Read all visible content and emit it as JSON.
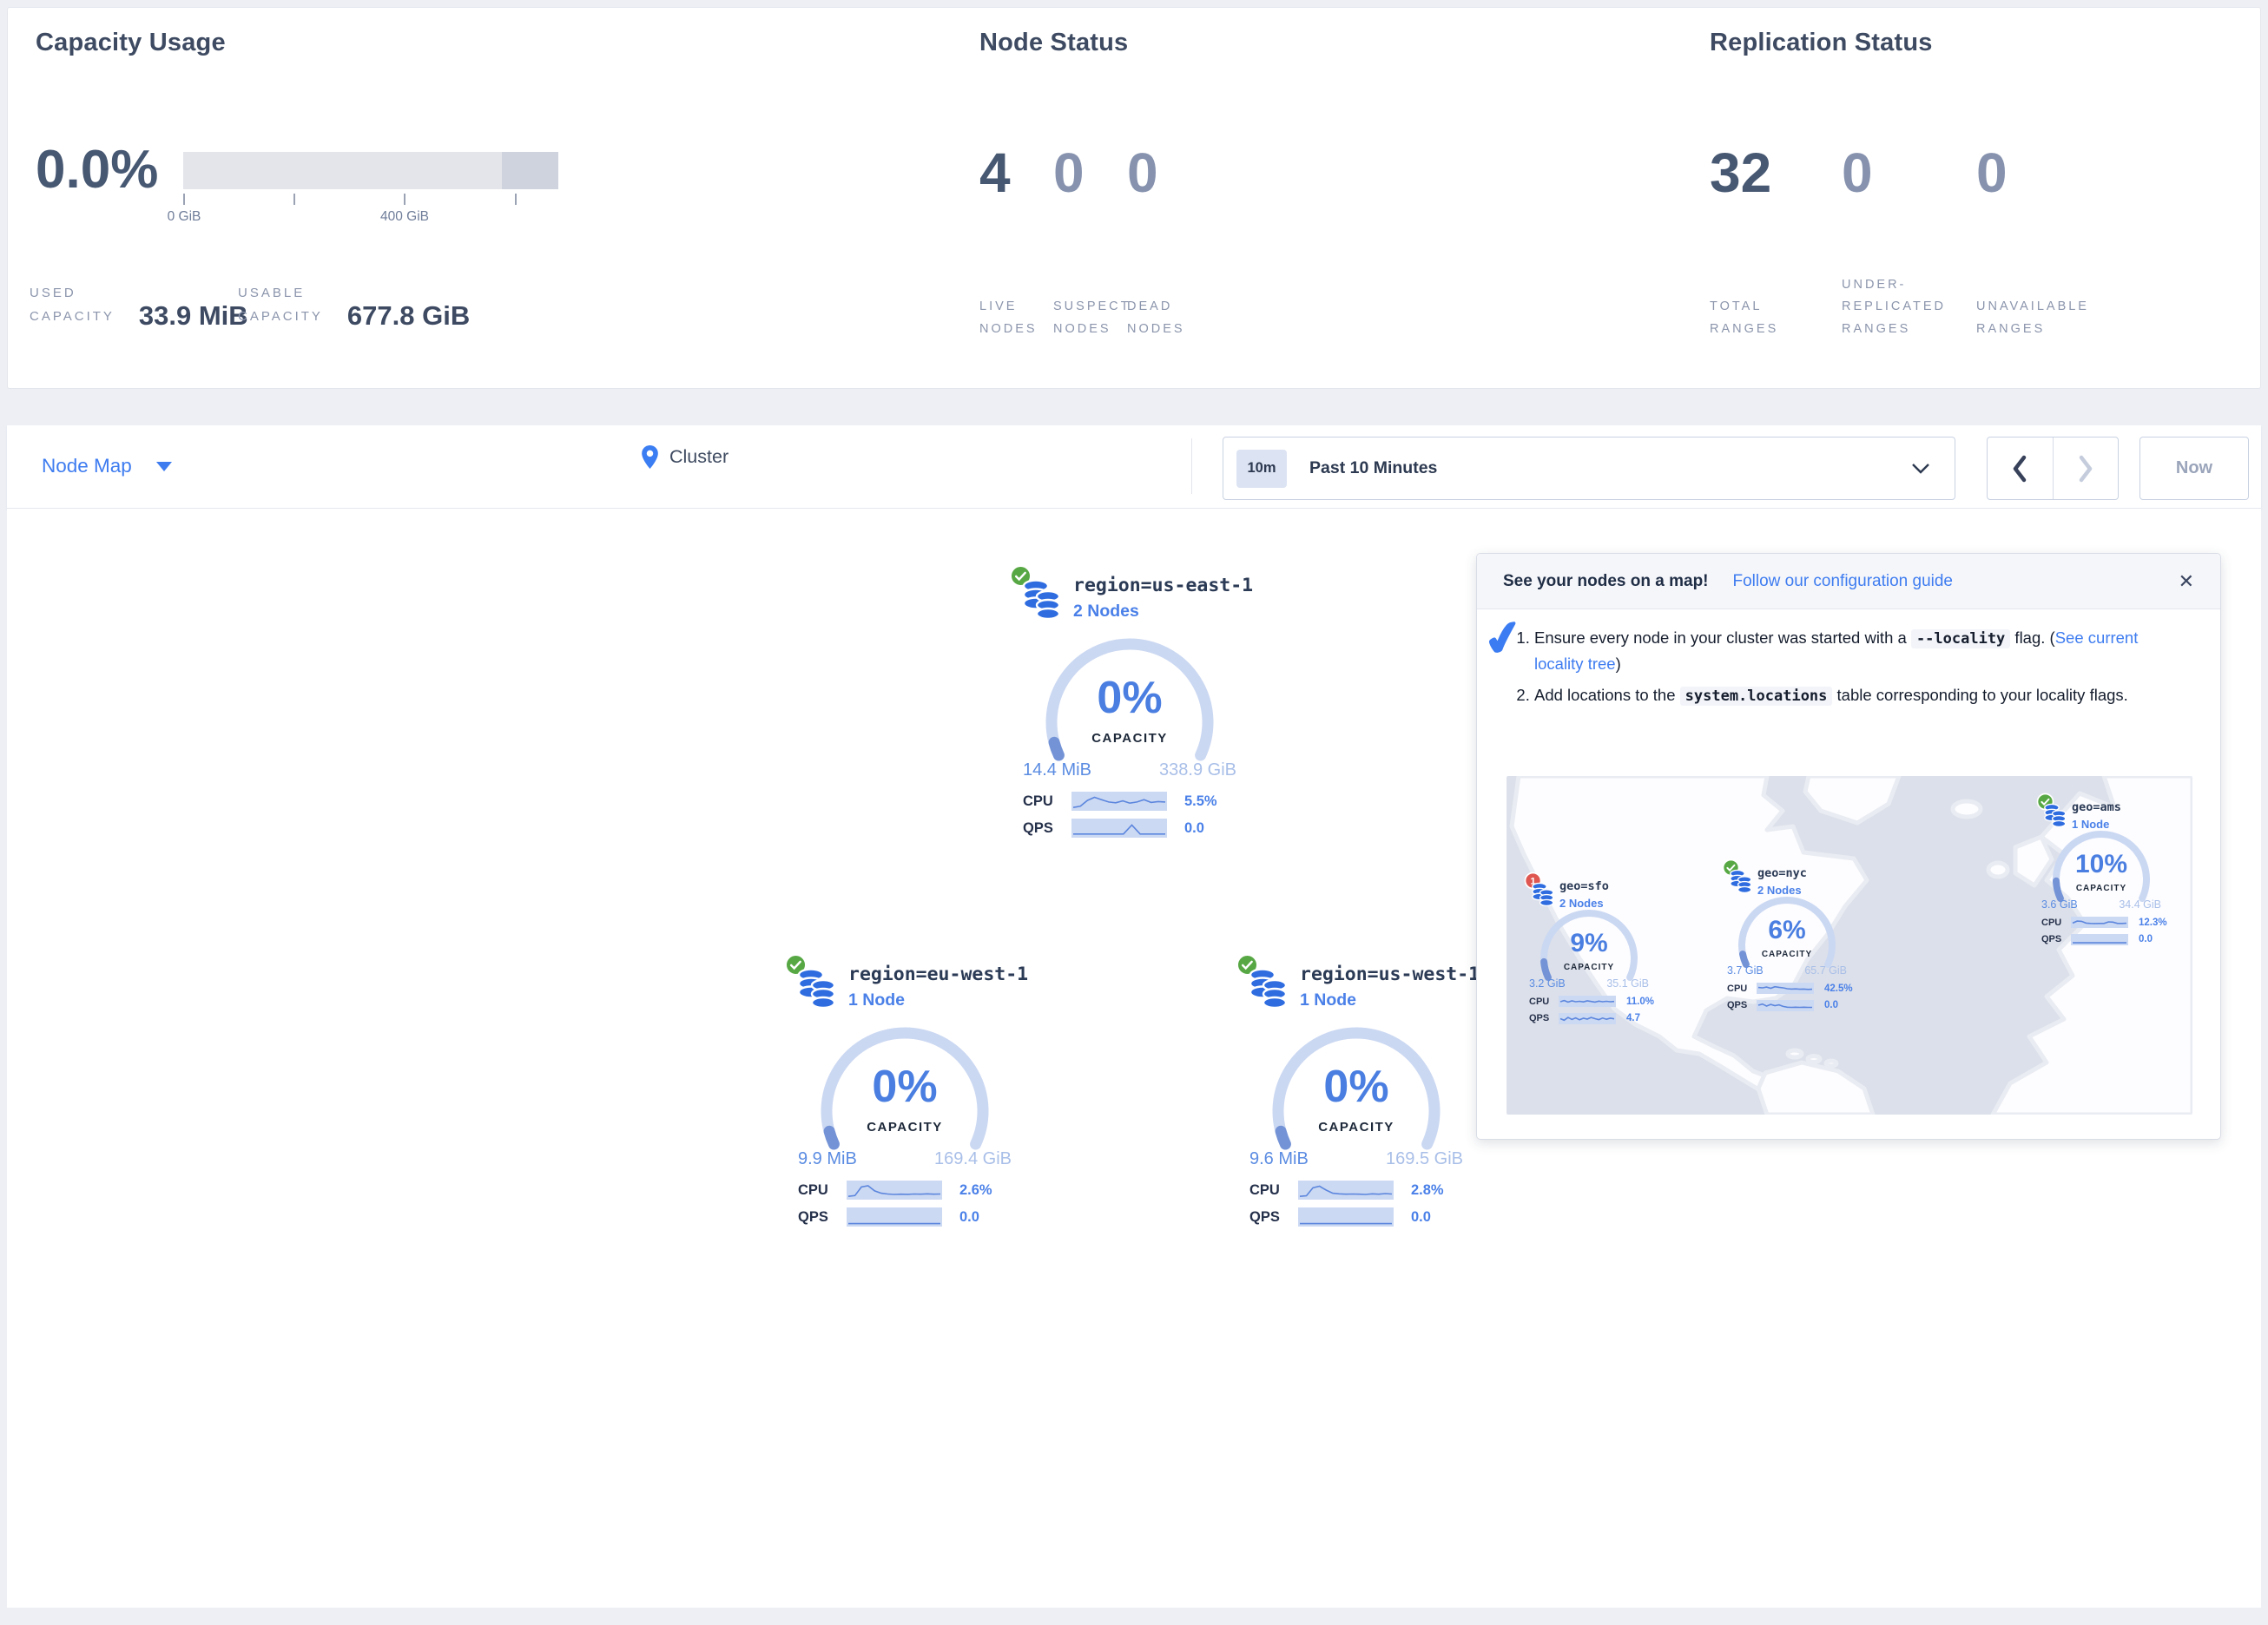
{
  "summary": {
    "capacity": {
      "title": "Capacity Usage",
      "percent": "0.0%",
      "tick_label_start": "0 GiB",
      "tick_label_mid": "400 GiB",
      "used": {
        "label_lines": [
          "USED",
          "CAPACITY"
        ],
        "value": "33.9 MiB"
      },
      "usable": {
        "label_lines": [
          "USABLE",
          "CAPACITY"
        ],
        "value": "677.8 GiB"
      }
    },
    "node_status": {
      "title": "Node Status",
      "stats": [
        {
          "value": "4",
          "muted": false,
          "label_lines": [
            "LIVE",
            "NODES"
          ]
        },
        {
          "value": "0",
          "muted": true,
          "label_lines": [
            "SUSPECT",
            "NODES"
          ]
        },
        {
          "value": "0",
          "muted": true,
          "label_lines": [
            "DEAD",
            "NODES"
          ]
        }
      ]
    },
    "replication_status": {
      "title": "Replication Status",
      "stats": [
        {
          "value": "32",
          "muted": false,
          "label_lines": [
            "TOTAL",
            "RANGES"
          ]
        },
        {
          "value": "0",
          "muted": true,
          "label_lines": [
            "UNDER-",
            "REPLICATED",
            "RANGES"
          ]
        },
        {
          "value": "0",
          "muted": true,
          "label_lines": [
            "UNAVAILABLE",
            "RANGES"
          ]
        }
      ]
    }
  },
  "toolbar": {
    "view_selector_label": "Node Map",
    "breadcrumb": "Cluster",
    "time_window_badge": "10m",
    "time_window_label": "Past 10 Minutes",
    "now_button_label": "Now"
  },
  "regions": [
    {
      "id": "us-east-1",
      "title": "region=us-east-1",
      "nodes_label": "2 Nodes",
      "status": "healthy",
      "pct": 0,
      "pct_label": "0%",
      "capacity_word": "CAPACITY",
      "used": "14.4 MiB",
      "total": "338.9 GiB",
      "metrics": [
        {
          "label": "CPU",
          "value": "5.5%",
          "spark": [
            10,
            18,
            55,
            75,
            60,
            45,
            40,
            52,
            38,
            45,
            60,
            42,
            48,
            45
          ]
        },
        {
          "label": "QPS",
          "value": "0.0",
          "spark": [
            12,
            12,
            12,
            12,
            12,
            12,
            12,
            70,
            12,
            12,
            12,
            12
          ]
        }
      ]
    },
    {
      "id": "eu-west-1",
      "title": "region=eu-west-1",
      "nodes_label": "1 Node",
      "status": "healthy",
      "pct": 0,
      "pct_label": "0%",
      "capacity_word": "CAPACITY",
      "used": "9.9 MiB",
      "total": "169.4 GiB",
      "metrics": [
        {
          "label": "CPU",
          "value": "2.6%",
          "spark": [
            10,
            15,
            70,
            78,
            45,
            30,
            25,
            22,
            24,
            23,
            25,
            24,
            26,
            24,
            25
          ]
        },
        {
          "label": "QPS",
          "value": "0.0",
          "spark": [
            8,
            8,
            8,
            8,
            8,
            8,
            8,
            8,
            8,
            8
          ]
        }
      ]
    },
    {
      "id": "us-west-1",
      "title": "region=us-west-1",
      "nodes_label": "1 Node",
      "status": "healthy",
      "pct": 0,
      "pct_label": "0%",
      "capacity_word": "CAPACITY",
      "used": "9.6 MiB",
      "total": "169.5 GiB",
      "metrics": [
        {
          "label": "CPU",
          "value": "2.8%",
          "spark": [
            10,
            14,
            65,
            75,
            50,
            30,
            26,
            24,
            25,
            24,
            22,
            26,
            24,
            28,
            25
          ]
        },
        {
          "label": "QPS",
          "value": "0.0",
          "spark": [
            8,
            8,
            8,
            8,
            8,
            8,
            8,
            8,
            8,
            8
          ]
        }
      ]
    }
  ],
  "popup": {
    "title": "See your nodes on a map!",
    "link_label": "Follow our configuration guide",
    "close_icon": "✕",
    "check_icon": "✔",
    "steps": [
      {
        "parts": [
          {
            "type": "text",
            "value": "Ensure every node in your cluster was started with a "
          },
          {
            "type": "code",
            "value": "--locality"
          },
          {
            "type": "text",
            "value": " flag. ("
          },
          {
            "type": "link",
            "value": "See current locality tree"
          },
          {
            "type": "text",
            "value": ")"
          }
        ]
      },
      {
        "parts": [
          {
            "type": "text",
            "value": "Add locations to the "
          },
          {
            "type": "code",
            "value": "system.locations"
          },
          {
            "type": "text",
            "value": " table corresponding to your locality flags."
          }
        ]
      }
    ],
    "mini_regions": [
      {
        "id": "geo-sfo",
        "title": "geo=sfo",
        "nodes_label": "2 Nodes",
        "status": "warning",
        "badge": "1",
        "pct": 9,
        "pct_label": "9%",
        "capacity_word": "CAPACITY",
        "used": "3.2 GiB",
        "total": "35.1 GiB",
        "metrics": [
          {
            "label": "CPU",
            "value": "11.0%",
            "spark": [
              45,
              60,
              40,
              55,
              45,
              50,
              42,
              55,
              48,
              40,
              52,
              45,
              50,
              44,
              48
            ]
          },
          {
            "label": "QPS",
            "value": "4.7",
            "spark": [
              50,
              30,
              65,
              40,
              60,
              35,
              55,
              45,
              65,
              50,
              38,
              58,
              42,
              55,
              48
            ]
          }
        ]
      },
      {
        "id": "geo-nyc",
        "title": "geo=nyc",
        "nodes_label": "2 Nodes",
        "status": "healthy",
        "pct": 6,
        "pct_label": "6%",
        "capacity_word": "CAPACITY",
        "used": "3.7 GiB",
        "total": "65.7 GiB",
        "metrics": [
          {
            "label": "CPU",
            "value": "42.5%",
            "spark": [
              60,
              55,
              65,
              50,
              70,
              62,
              55,
              45,
              40,
              42,
              38,
              40,
              36,
              38
            ]
          },
          {
            "label": "QPS",
            "value": "0.0",
            "spark": [
              55,
              70,
              45,
              65,
              50,
              60,
              40,
              30,
              28,
              30,
              28,
              30,
              28,
              28
            ]
          }
        ]
      },
      {
        "id": "geo-ams",
        "title": "geo=ams",
        "nodes_label": "1 Node",
        "status": "healthy",
        "pct": 10,
        "pct_label": "10%",
        "capacity_word": "CAPACITY",
        "used": "3.6 GiB",
        "total": "34.4 GiB",
        "metrics": [
          {
            "label": "CPU",
            "value": "12.3%",
            "spark": [
              40,
              65,
              62,
              40,
              35,
              34,
              36,
              35,
              55,
              52,
              36,
              35,
              38
            ]
          },
          {
            "label": "QPS",
            "value": "0.0",
            "spark": [
              10,
              10,
              10,
              10,
              10,
              10,
              10,
              10,
              10,
              10
            ]
          }
        ]
      }
    ]
  },
  "colors": {
    "accent_blue": "#3e7cf0",
    "gauge_text_blue": "#4a7ee0",
    "gauge_arc": "#cbd8f2",
    "gauge_progress": "#7493d6",
    "healthy_green": "#57a844",
    "warning_red": "#df5650"
  }
}
